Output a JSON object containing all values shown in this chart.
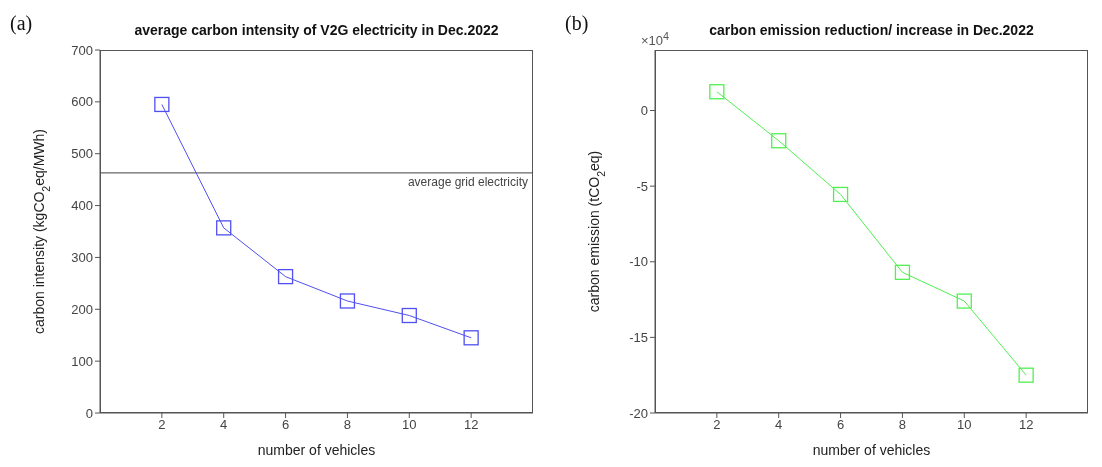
{
  "chart_data": [
    {
      "type": "line",
      "title": "average carbon intensity of V2G electricity in Dec.2022",
      "xlabel": "number of vehicles",
      "ylabel": "carbon intensity (kgCO$_{2}$eq/MWh)",
      "x": [
        2,
        4,
        6,
        8,
        10,
        12
      ],
      "series": [
        {
          "color": "#5050f0",
          "values": [
            595,
            357,
            263,
            216,
            188,
            145
          ]
        }
      ],
      "xlim": [
        0,
        14
      ],
      "xticks": [
        2,
        4,
        6,
        8,
        10,
        12
      ],
      "ylim": [
        0,
        700
      ],
      "yticks": [
        0,
        100,
        200,
        300,
        400,
        500,
        600,
        700
      ],
      "ref_lines": [
        {
          "axis": "y",
          "value": 463,
          "label": "average grid electricity",
          "color": "#404040"
        }
      ],
      "marker": "square",
      "annotations": [
        "(a)"
      ]
    },
    {
      "type": "line",
      "title": "carbon emission reduction/ increase in Dec.2022",
      "xlabel": "number of vehicles",
      "ylabel": "carbon emission (tCO$_{2}$eq)",
      "x": [
        2,
        4,
        6,
        8,
        10,
        12
      ],
      "series": [
        {
          "color": "#50f050",
          "values": [
            1.24,
            -2.0,
            -5.55,
            -10.7,
            -12.6,
            -17.5
          ]
        }
      ],
      "xlim": [
        0,
        14
      ],
      "xticks": [
        2,
        4,
        6,
        8,
        10,
        12
      ],
      "ylim": [
        -20,
        4
      ],
      "yticks": [
        -20,
        -15,
        -10,
        -5,
        0
      ],
      "marker": "square",
      "annotations": [
        "(b)",
        "×10$^{4}$"
      ]
    }
  ]
}
